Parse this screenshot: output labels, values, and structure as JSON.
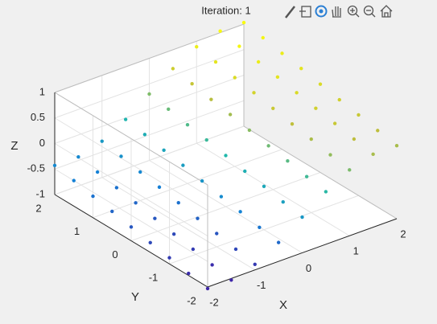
{
  "chart_data": {
    "type": "scatter3",
    "title": "Iteration: 1",
    "xlabel": "X",
    "ylabel": "Y",
    "zlabel": "Z",
    "xlim": [
      -2,
      2
    ],
    "ylim": [
      -2,
      2
    ],
    "zlim": [
      -1,
      1
    ],
    "xticks": [
      -2,
      -1,
      0,
      1,
      2
    ],
    "yticks": [
      -2,
      -1,
      0,
      1,
      2
    ],
    "zticks": [
      -1,
      -0.5,
      0,
      0.5,
      1
    ],
    "grid": true,
    "colormap": "parula",
    "x": [
      -2,
      -1.5,
      -1,
      -0.5,
      0,
      0.5,
      1,
      1.5,
      2,
      -2,
      -1.5,
      -1,
      -0.5,
      0,
      0.5,
      1,
      1.5,
      2,
      -2,
      -1.5,
      -1,
      -0.5,
      0,
      0.5,
      1,
      1.5,
      2,
      -2,
      -1.5,
      -1,
      -0.5,
      0,
      0.5,
      1,
      1.5,
      2,
      -2,
      -1.5,
      -1,
      -0.5,
      0,
      0.5,
      1,
      1.5,
      2,
      -2,
      -1.5,
      -1,
      -0.5,
      0,
      0.5,
      1,
      1.5,
      2,
      -2,
      -1.5,
      -1,
      -0.5,
      0,
      0.5,
      1,
      1.5,
      2,
      -2,
      -1.5,
      -1,
      -0.5,
      0,
      0.5,
      1,
      1.5,
      2,
      -2,
      -1.5,
      -1,
      -0.5,
      0,
      0.5,
      1,
      1.5,
      2
    ],
    "y": [
      -2,
      -2,
      -2,
      -2,
      -2,
      -2,
      -2,
      -2,
      -2,
      -1.5,
      -1.5,
      -1.5,
      -1.5,
      -1.5,
      -1.5,
      -1.5,
      -1.5,
      -1.5,
      -1,
      -1,
      -1,
      -1,
      -1,
      -1,
      -1,
      -1,
      -1,
      -0.5,
      -0.5,
      -0.5,
      -0.5,
      -0.5,
      -0.5,
      -0.5,
      -0.5,
      -0.5,
      0,
      0,
      0,
      0,
      0,
      0,
      0,
      0,
      0,
      0.5,
      0.5,
      0.5,
      0.5,
      0.5,
      0.5,
      0.5,
      0.5,
      0.5,
      1,
      1,
      1,
      1,
      1,
      1,
      1,
      1,
      1,
      1.5,
      1.5,
      1.5,
      1.5,
      1.5,
      1.5,
      1.5,
      1.5,
      1.5,
      2,
      2,
      2,
      2,
      2,
      2,
      2,
      2,
      2
    ],
    "z": [
      -1.03,
      -1.03,
      -0.89,
      -0.63,
      -0.3,
      0.03,
      0.29,
      0.43,
      0.43,
      -0.96,
      -0.96,
      -0.82,
      -0.56,
      -0.23,
      0.1,
      0.36,
      0.5,
      0.5,
      -0.88,
      -0.88,
      -0.74,
      -0.48,
      -0.15,
      0.18,
      0.44,
      0.58,
      0.58,
      -0.81,
      -0.81,
      -0.67,
      -0.41,
      -0.08,
      0.25,
      0.51,
      0.65,
      0.65,
      -0.73,
      -0.73,
      -0.59,
      -0.33,
      0,
      0.33,
      0.59,
      0.73,
      0.73,
      -0.65,
      -0.65,
      -0.51,
      -0.25,
      0.08,
      0.41,
      0.67,
      0.81,
      0.81,
      -0.58,
      -0.58,
      -0.44,
      -0.18,
      0.15,
      0.48,
      0.74,
      0.88,
      0.88,
      -0.5,
      -0.5,
      -0.36,
      -0.1,
      0.23,
      0.56,
      0.82,
      0.96,
      0.96,
      -0.43,
      -0.43,
      -0.29,
      -0.03,
      0.3,
      0.63,
      0.89,
      1.03,
      1.03
    ]
  }
}
